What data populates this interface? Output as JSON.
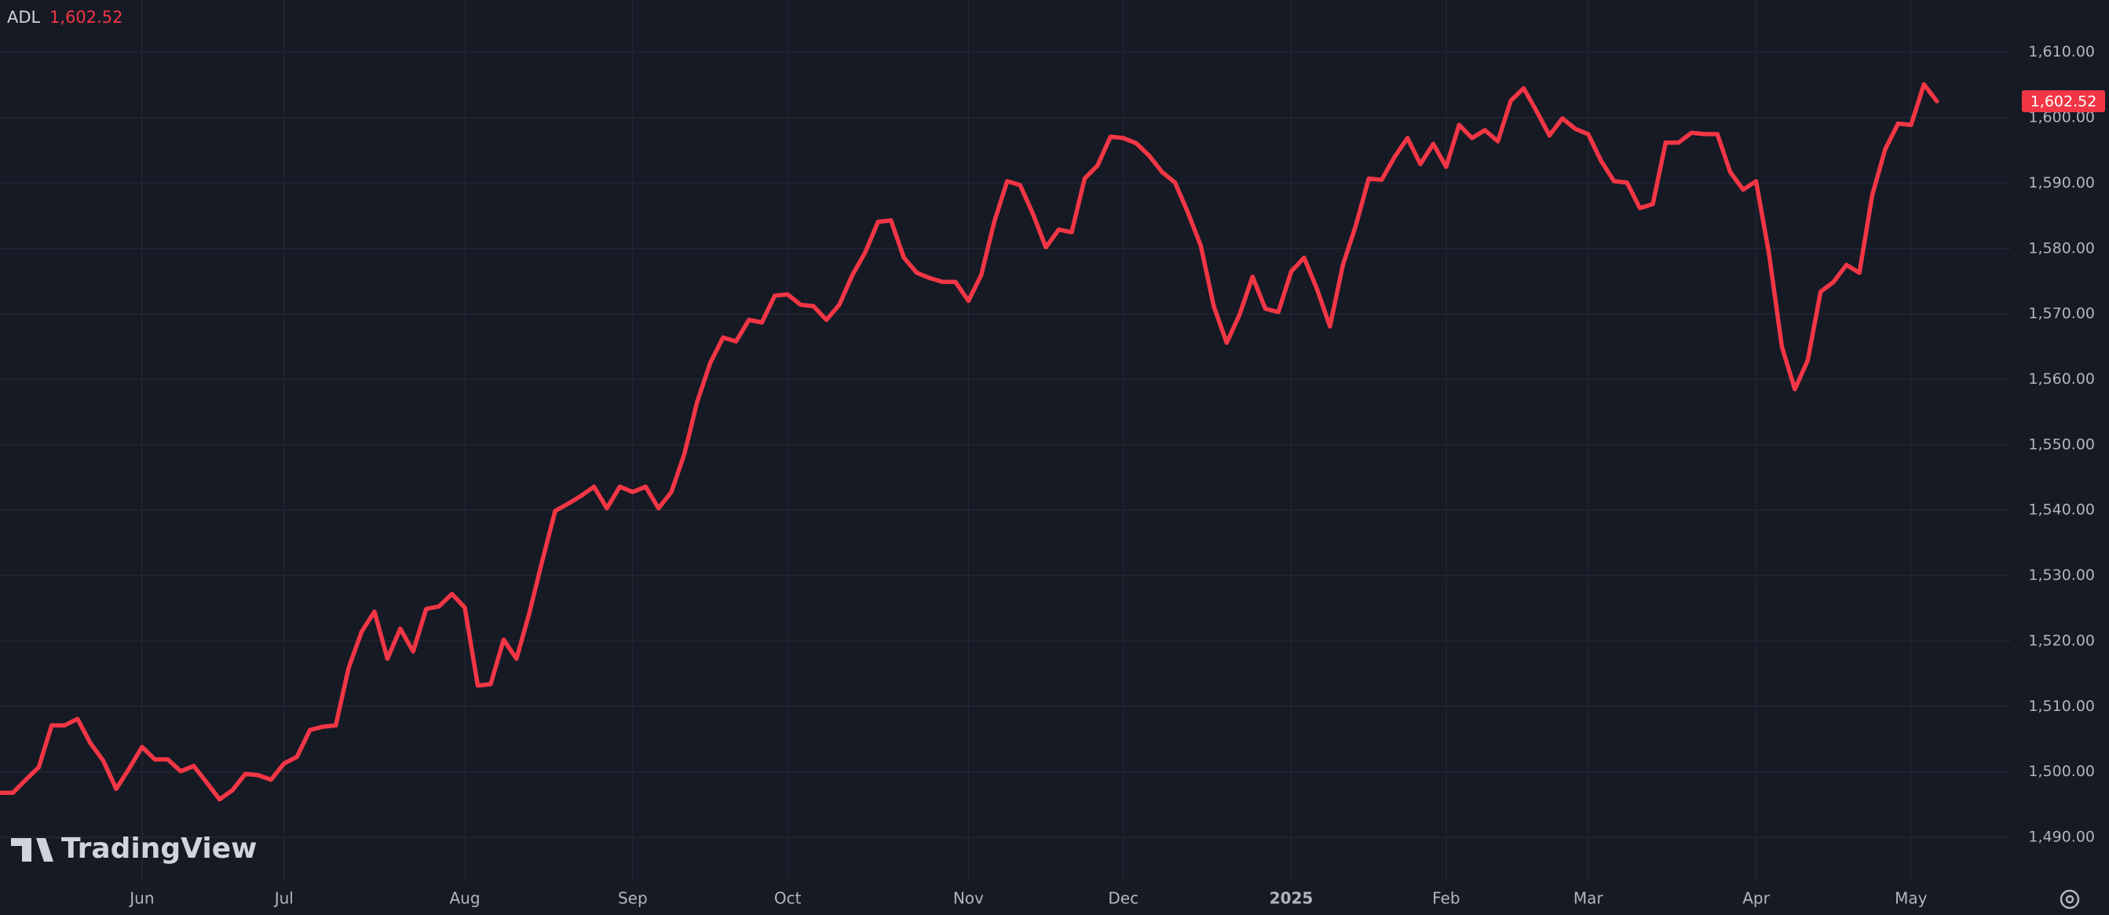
{
  "chart_data": {
    "type": "line",
    "watermark": "TradingView",
    "last_label": "1,602.52",
    "categories": [
      null,
      null,
      null,
      null,
      null,
      null,
      null,
      null,
      null,
      null,
      null,
      "Jun",
      null,
      null,
      null,
      null,
      null,
      null,
      null,
      null,
      null,
      null,
      "Jul",
      null,
      null,
      null,
      null,
      null,
      null,
      null,
      null,
      null,
      null,
      null,
      null,
      null,
      "Aug",
      null,
      null,
      null,
      null,
      null,
      null,
      null,
      null,
      null,
      null,
      null,
      null,
      "Sep",
      null,
      null,
      null,
      null,
      null,
      null,
      null,
      null,
      null,
      null,
      null,
      "Oct",
      null,
      null,
      null,
      null,
      null,
      null,
      null,
      null,
      null,
      null,
      null,
      null,
      null,
      "Nov",
      null,
      null,
      null,
      null,
      null,
      null,
      null,
      null,
      null,
      null,
      null,
      "Dec",
      null,
      null,
      null,
      null,
      null,
      null,
      null,
      null,
      null,
      null,
      null,
      null,
      "2025",
      null,
      null,
      null,
      null,
      null,
      null,
      null,
      null,
      null,
      null,
      null,
      "Feb",
      null,
      null,
      null,
      null,
      null,
      null,
      null,
      null,
      null,
      null,
      "Mar",
      null,
      null,
      null,
      null,
      null,
      null,
      null,
      null,
      null,
      null,
      null,
      null,
      "Apr",
      null,
      null,
      null,
      null,
      null,
      null,
      null,
      null,
      null,
      null,
      null,
      "May",
      null,
      null
    ],
    "series": [
      {
        "name": "ADL",
        "color": "#f23645",
        "values": [
          1496.8,
          1496.8,
          1498.8,
          1500.7,
          1507.1,
          1507.1,
          1508.1,
          1504.4,
          1501.7,
          1497.4,
          1500.5,
          1503.8,
          1501.9,
          1501.9,
          1500.1,
          1500.9,
          1498.4,
          1495.8,
          1497.2,
          1499.7,
          1499.5,
          1498.8,
          1501.3,
          1502.3,
          1506.4,
          1506.9,
          1507.1,
          1515.9,
          1521.4,
          1524.5,
          1517.3,
          1521.9,
          1518.4,
          1524.9,
          1525.3,
          1527.2,
          1525.1,
          1513.2,
          1513.4,
          1520.2,
          1517.3,
          1524.3,
          1532.3,
          1539.9,
          1541.0,
          1542.2,
          1543.6,
          1540.3,
          1543.6,
          1542.8,
          1543.6,
          1540.3,
          1542.8,
          1548.6,
          1556.6,
          1562.5,
          1566.4,
          1565.8,
          1569.1,
          1568.7,
          1572.8,
          1573.0,
          1571.4,
          1571.2,
          1569.1,
          1571.4,
          1575.9,
          1579.4,
          1584.1,
          1584.3,
          1578.6,
          1576.3,
          1575.5,
          1574.9,
          1574.9,
          1572.0,
          1576.0,
          1584.1,
          1590.3,
          1589.7,
          1585.3,
          1580.2,
          1582.9,
          1582.5,
          1590.7,
          1592.7,
          1597.1,
          1596.9,
          1596.1,
          1594.2,
          1591.7,
          1590.1,
          1585.5,
          1580.4,
          1571.2,
          1565.6,
          1569.9,
          1575.7,
          1570.8,
          1570.3,
          1576.5,
          1578.6,
          1573.8,
          1568.1,
          1577.5,
          1583.5,
          1590.7,
          1590.5,
          1594.0,
          1596.9,
          1592.9,
          1596.0,
          1592.5,
          1598.9,
          1596.9,
          1598.1,
          1596.4,
          1602.6,
          1604.5,
          1601.0,
          1597.3,
          1599.9,
          1598.3,
          1597.5,
          1593.4,
          1590.3,
          1590.1,
          1586.2,
          1586.8,
          1596.2,
          1596.2,
          1597.7,
          1597.5,
          1597.5,
          1591.7,
          1589.0,
          1590.3,
          1579.2,
          1565.0,
          1558.5,
          1562.9,
          1573.4,
          1574.9,
          1577.5,
          1576.3,
          1588.2,
          1595.2,
          1599.1,
          1598.9,
          1605.1,
          1602.52
        ]
      }
    ],
    "ylim": [
      1483.4,
      1618.0
    ],
    "yticks": [
      {
        "value": 1490,
        "label": "1,490.00"
      },
      {
        "value": 1500,
        "label": "1,500.00"
      },
      {
        "value": 1510,
        "label": "1,510.00"
      },
      {
        "value": 1520,
        "label": "1,520.00"
      },
      {
        "value": 1530,
        "label": "1,530.00"
      },
      {
        "value": 1540,
        "label": "1,540.00"
      },
      {
        "value": 1550,
        "label": "1,550.00"
      },
      {
        "value": 1560,
        "label": "1,560.00"
      },
      {
        "value": 1570,
        "label": "1,570.00"
      },
      {
        "value": 1580,
        "label": "1,580.00"
      },
      {
        "value": 1590,
        "label": "1,590.00"
      },
      {
        "value": 1600,
        "label": "1,600.00"
      },
      {
        "value": 1610,
        "label": "1,610.00"
      }
    ],
    "grid": true
  }
}
